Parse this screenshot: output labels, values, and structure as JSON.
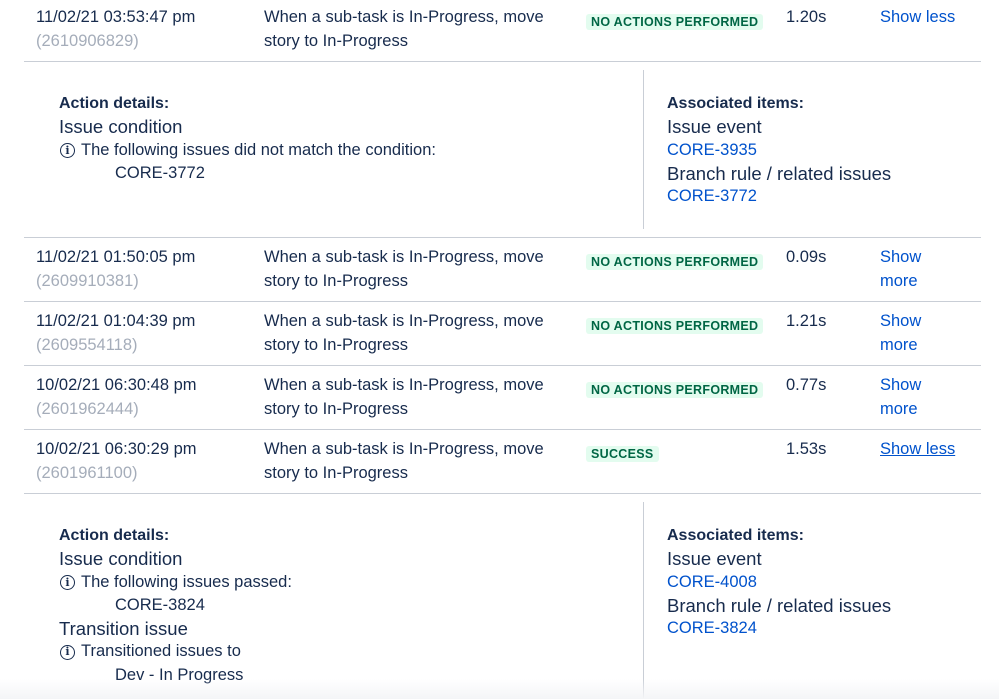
{
  "rows": [
    {
      "date": "11/02/21 03:53:47 pm",
      "id": "(2610906829)",
      "rule_line1": "When a sub-task is In-Progress, move",
      "rule_line2": "story to In-Progress",
      "status": "NO ACTIONS PERFORMED",
      "duration": "1.20s",
      "toggle": "Show less"
    },
    {
      "date": "11/02/21 01:50:05 pm",
      "id": "(2609910381)",
      "rule_line1": "When a sub-task is In-Progress, move",
      "rule_line2": "story to In-Progress",
      "status": "NO ACTIONS PERFORMED",
      "duration": "0.09s",
      "toggle_line1": "Show",
      "toggle_line2": "more"
    },
    {
      "date": "11/02/21 01:04:39 pm",
      "id": "(2609554118)",
      "rule_line1": "When a sub-task is In-Progress, move",
      "rule_line2": "story to In-Progress",
      "status": "NO ACTIONS PERFORMED",
      "duration": "1.21s",
      "toggle_line1": "Show",
      "toggle_line2": "more"
    },
    {
      "date": "10/02/21 06:30:48 pm",
      "id": "(2601962444)",
      "rule_line1": "When a sub-task is In-Progress, move",
      "rule_line2": "story to In-Progress",
      "status": "NO ACTIONS PERFORMED",
      "duration": "0.77s",
      "toggle_line1": "Show",
      "toggle_line2": "more"
    },
    {
      "date": "10/02/21 06:30:29 pm",
      "id": "(2601961100)",
      "rule_line1": "When a sub-task is In-Progress, move",
      "rule_line2": "story to In-Progress",
      "status": "SUCCESS",
      "duration": "1.53s",
      "toggle": "Show less"
    }
  ],
  "details": [
    {
      "action_label": "Action details:",
      "action_1_title": "Issue condition",
      "action_1_message": "The following issues did not match the condition:",
      "action_1_item": "CORE-3772",
      "assoc_label": "Associated items:",
      "assoc_1_title": "Issue event",
      "assoc_1_link": "CORE-3935",
      "assoc_2_title": "Branch rule / related issues",
      "assoc_2_link": "CORE-3772"
    },
    {
      "action_label": "Action details:",
      "action_1_title": "Issue condition",
      "action_1_message": "The following issues passed:",
      "action_1_item": "CORE-3824",
      "action_2_title": "Transition issue",
      "action_2_message": "Transitioned issues to",
      "action_2_item": "Dev - In Progress",
      "assoc_label": "Associated items:",
      "assoc_1_title": "Issue event",
      "assoc_1_link": "CORE-4008",
      "assoc_2_title": "Branch rule / related issues",
      "assoc_2_link": "CORE-3824"
    }
  ],
  "icons": {
    "info": "info-circle-icon"
  },
  "colors": {
    "link": "#0052cc",
    "status_bg": "#e3fcef",
    "status_text": "#006644",
    "muted_id": "#a5adba"
  }
}
